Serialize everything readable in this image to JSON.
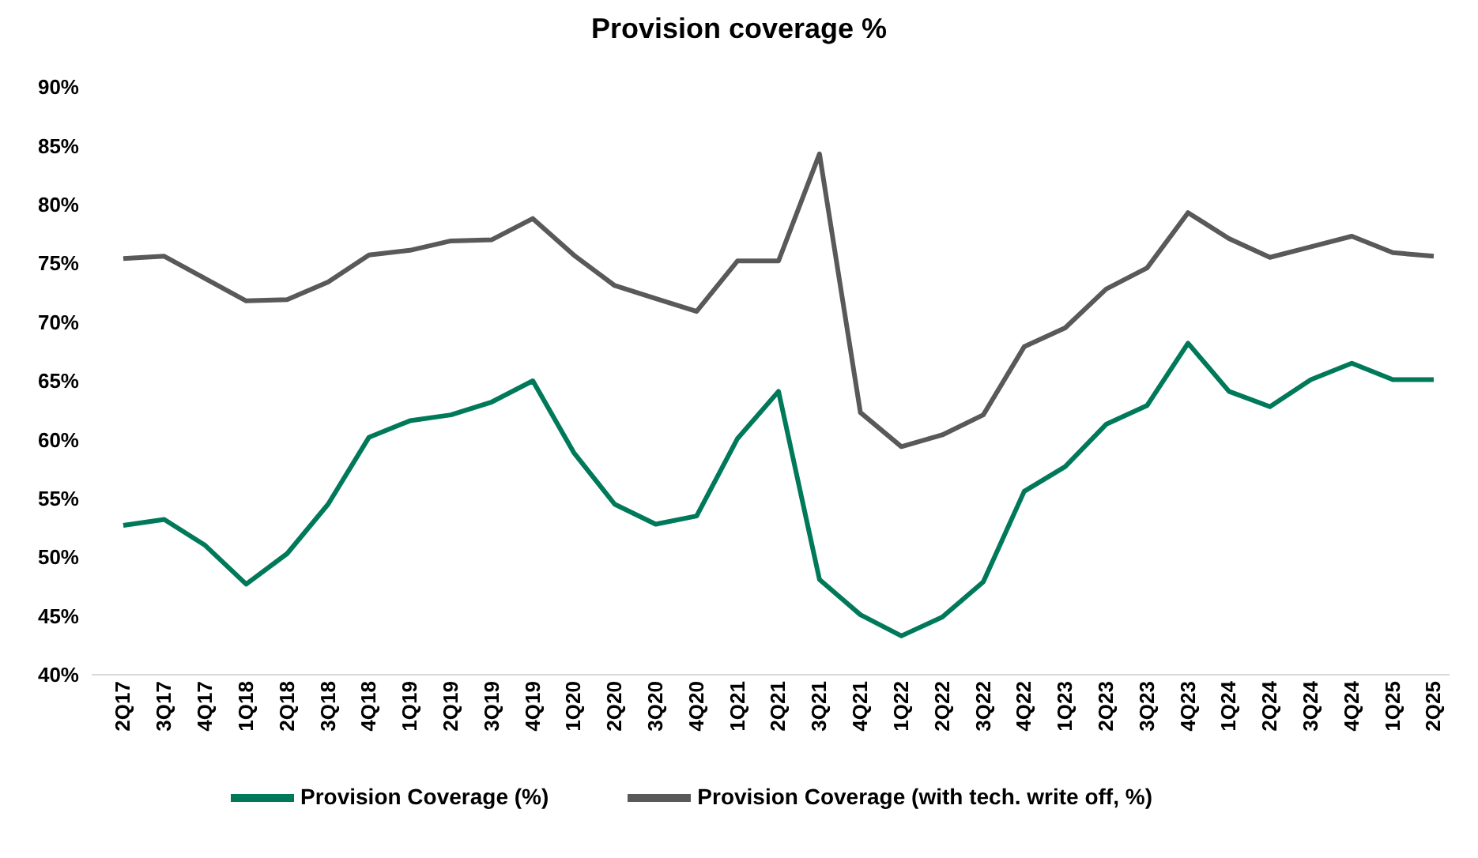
{
  "chart_data": {
    "type": "line",
    "title": "Provision coverage %",
    "categories": [
      "2Q17",
      "3Q17",
      "4Q17",
      "1Q18",
      "2Q18",
      "3Q18",
      "4Q18",
      "1Q19",
      "2Q19",
      "3Q19",
      "4Q19",
      "1Q20",
      "2Q20",
      "3Q20",
      "4Q20",
      "1Q21",
      "2Q21",
      "3Q21",
      "4Q21",
      "1Q22",
      "2Q22",
      "3Q22",
      "4Q22",
      "1Q23",
      "2Q23",
      "3Q23",
      "4Q23",
      "1Q24",
      "2Q24",
      "3Q24",
      "4Q24",
      "1Q25",
      "2Q25"
    ],
    "series": [
      {
        "name": "Provision Coverage (with tech. write off, %)",
        "color": "#595959",
        "values": [
          75.4,
          75.6,
          73.7,
          71.8,
          71.9,
          73.4,
          75.7,
          76.1,
          76.9,
          77.0,
          78.8,
          75.7,
          73.1,
          72.0,
          70.9,
          75.2,
          75.2,
          84.3,
          62.3,
          59.4,
          60.4,
          62.1,
          67.9,
          69.5,
          72.8,
          74.6,
          79.3,
          77.1,
          75.5,
          76.4,
          77.3,
          75.9,
          75.6
        ]
      },
      {
        "name": "Provision Coverage (%)",
        "color": "#00795a",
        "values": [
          52.7,
          53.2,
          51.0,
          47.7,
          50.3,
          54.5,
          60.2,
          61.6,
          62.1,
          63.2,
          65.0,
          58.9,
          54.5,
          52.8,
          53.5,
          60.1,
          64.1,
          48.1,
          45.1,
          43.3,
          44.9,
          47.9,
          55.6,
          57.7,
          61.3,
          62.9,
          68.2,
          64.1,
          62.8,
          65.1,
          66.5,
          65.1,
          65.1
        ]
      }
    ],
    "ylim": [
      40,
      90
    ],
    "yticks": [
      {
        "value": 40,
        "label": "40%"
      },
      {
        "value": 45,
        "label": "45%"
      },
      {
        "value": 50,
        "label": "50%"
      },
      {
        "value": 55,
        "label": "55%"
      },
      {
        "value": 60,
        "label": "60%"
      },
      {
        "value": 65,
        "label": "65%"
      },
      {
        "value": 70,
        "label": "70%"
      },
      {
        "value": 75,
        "label": "75%"
      },
      {
        "value": 80,
        "label": "80%"
      },
      {
        "value": 85,
        "label": "85%"
      },
      {
        "value": 90,
        "label": "90%"
      }
    ],
    "grid": false,
    "legend": "bottom",
    "marker": "none",
    "line_style": "solid"
  }
}
